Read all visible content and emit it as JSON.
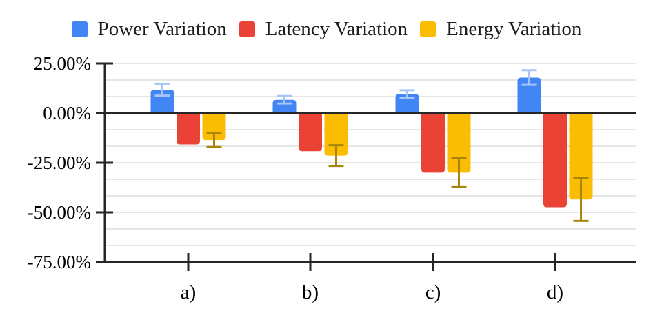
{
  "chart_data": {
    "type": "bar",
    "title": "",
    "xlabel": "",
    "ylabel": "",
    "unit": "%",
    "categories": [
      "a)",
      "b)",
      "c)",
      "d)"
    ],
    "series": [
      {
        "name": "Power Variation",
        "color": "#4285F4",
        "error_color": "#A6C5F7",
        "values": [
          11.8,
          6.7,
          9.6,
          17.9
        ],
        "errors": [
          3.0,
          1.9,
          1.9,
          3.7
        ]
      },
      {
        "name": "Latency Variation",
        "color": "#EA4335",
        "error_color": null,
        "values": [
          -15.8,
          -19.2,
          -30.0,
          -47.4
        ],
        "errors": null
      },
      {
        "name": "Energy Variation",
        "color": "#FBBC04",
        "error_color": "#A8860B",
        "values": [
          -13.6,
          -21.4,
          -30.0,
          -43.5
        ],
        "errors": [
          3.5,
          5.2,
          7.3,
          10.8
        ]
      }
    ],
    "ylim": [
      -75,
      25
    ],
    "yticks": [
      {
        "value": 25,
        "label": "25.00%"
      },
      {
        "value": 0,
        "label": "0.00%"
      },
      {
        "value": -25,
        "label": "-25.00%"
      },
      {
        "value": -50,
        "label": "-50.00%"
      },
      {
        "value": -75,
        "label": "-75.00%"
      }
    ],
    "minor_gridlines_per_major": 3,
    "grid": true,
    "legend_position": "top"
  },
  "colors": {
    "axis": "#262626",
    "gridline": "#E6E6E6",
    "background": "#FFFFFF",
    "text": "#000000"
  }
}
